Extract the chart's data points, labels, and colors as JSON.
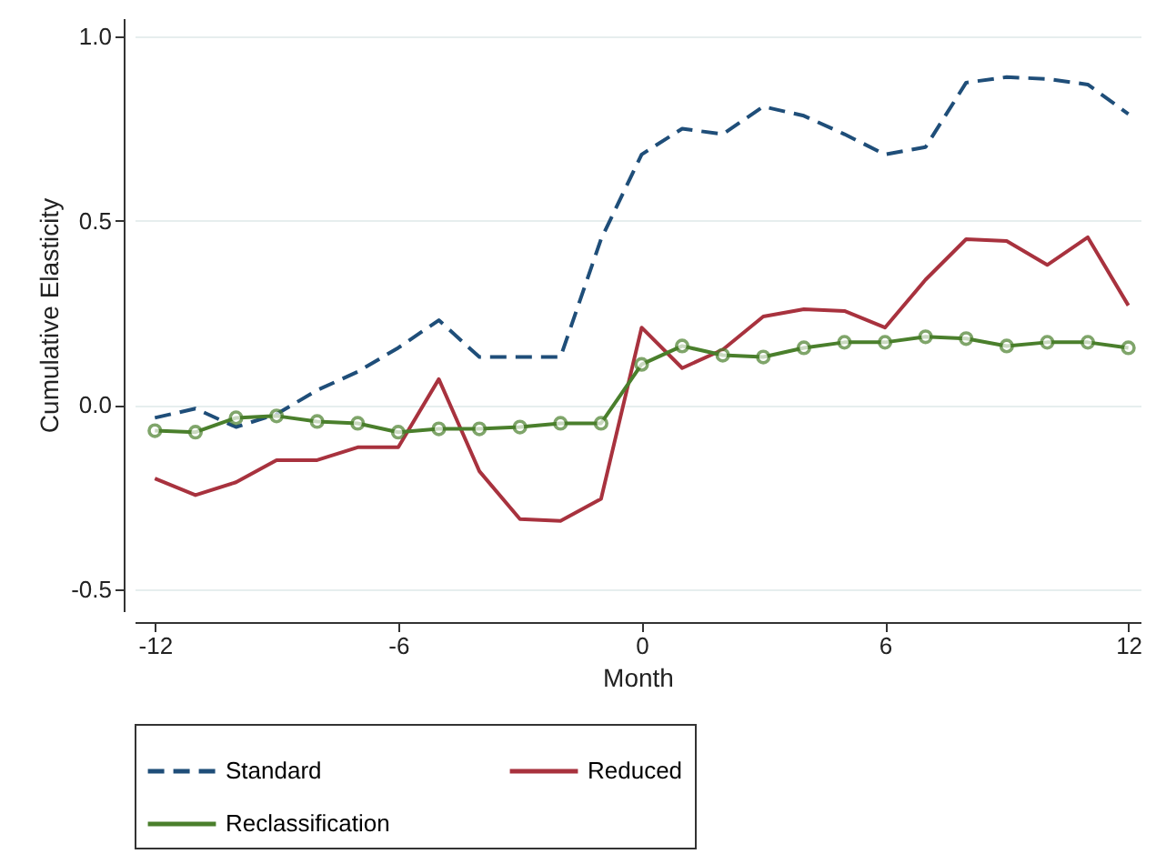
{
  "chart_data": {
    "type": "line",
    "xlabel": "Month",
    "ylabel": "Cumulative Elasticity",
    "x": [
      -12,
      -11,
      -10,
      -9,
      -8,
      -7,
      -6,
      -5,
      -4,
      -3,
      -2,
      -1,
      0,
      1,
      2,
      3,
      4,
      5,
      6,
      7,
      8,
      9,
      10,
      11,
      12
    ],
    "series": [
      {
        "name": "Standard",
        "color": "#1f4e79",
        "line_style": "dashed",
        "values": [
          -0.035,
          -0.01,
          -0.06,
          -0.025,
          0.04,
          0.09,
          0.155,
          0.23,
          0.13,
          0.13,
          0.13,
          0.45,
          0.68,
          0.75,
          0.735,
          0.81,
          0.785,
          0.735,
          0.68,
          0.7,
          0.875,
          0.89,
          0.885,
          0.87,
          0.79
        ]
      },
      {
        "name": "Reduced",
        "color": "#a8323e",
        "line_style": "solid",
        "values": [
          -0.2,
          -0.245,
          -0.21,
          -0.15,
          -0.15,
          -0.115,
          -0.115,
          0.07,
          -0.18,
          -0.31,
          -0.315,
          -0.255,
          0.21,
          0.1,
          0.15,
          0.24,
          0.26,
          0.255,
          0.21,
          0.34,
          0.45,
          0.445,
          0.38,
          0.455,
          0.27
        ]
      },
      {
        "name": "Reclassification",
        "color": "#4a7f2c",
        "line_style": "solid",
        "marker": "circle",
        "values": [
          -0.07,
          -0.074,
          -0.035,
          -0.03,
          -0.045,
          -0.05,
          -0.074,
          -0.065,
          -0.065,
          -0.06,
          -0.05,
          -0.05,
          0.11,
          0.16,
          0.135,
          0.13,
          0.155,
          0.17,
          0.17,
          0.185,
          0.18,
          0.16,
          0.17,
          0.17,
          0.155
        ]
      }
    ],
    "xlim": [
      -12.5,
      12.3
    ],
    "xticks": [
      -12,
      -6,
      0,
      6,
      12
    ],
    "ylim": [
      -0.56,
      1.05
    ],
    "yticks": [
      {
        "value": 1,
        "label": "1.0"
      },
      0.5,
      {
        "value": 0,
        "label": "0.0"
      },
      -0.5
    ],
    "grid": "y",
    "legend": "bottom"
  }
}
